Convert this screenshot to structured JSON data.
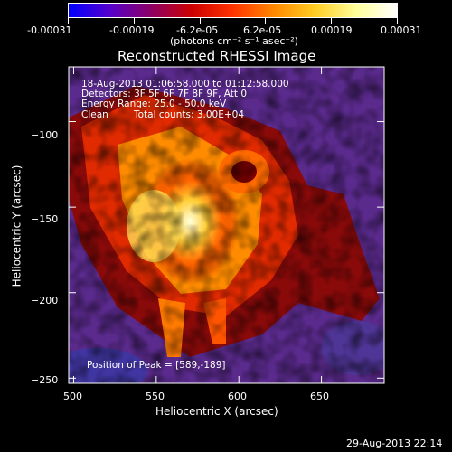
{
  "colorbar": {
    "tick_labels": [
      "-0.00031",
      "-0.00019",
      "-6.2e-05",
      "6.2e-05",
      "0.00019",
      "0.00031"
    ],
    "unit_line": "(photons cm⁻² s⁻¹ asec⁻²)",
    "stops": [
      "#0000ff",
      "#5500cc",
      "#8c0066",
      "#cc0000",
      "#ff3300",
      "#ff8800",
      "#ffcc22",
      "#ffff99",
      "#ffffff"
    ]
  },
  "annotations": {
    "time_range": "18-Aug-2013 01:06:58.000 to 01:12:58.000",
    "detectors": "Detectors: 3F 5F 6F 7F 8F 9F, Att 0",
    "energy": "Energy Range: 25.0 - 50.0 keV",
    "clean_label": "Clean",
    "total_counts": "Total counts: 3.00E+04",
    "peak": "Position of Peak = [589,-189]"
  },
  "footer": {
    "timestamp": "29-Aug-2013 22:14"
  },
  "chart_data": {
    "type": "heatmap",
    "title": "Reconstructed RHESSI Image",
    "xlabel": "Heliocentric X (arcsec)",
    "ylabel": "Heliocentric Y (arcsec)",
    "xlim": [
      497,
      688
    ],
    "ylim": [
      -253,
      -68
    ],
    "x_ticks": [
      500,
      550,
      600,
      650
    ],
    "y_ticks": [
      -100,
      -150,
      -200,
      -250
    ],
    "x_tick_labels": [
      "500",
      "550",
      "600",
      "650"
    ],
    "y_tick_labels": [
      "−100",
      "−150",
      "−200",
      "−250"
    ],
    "clim": [
      -0.00031,
      0.00031
    ],
    "peak_position": [
      589,
      -189
    ],
    "colors": {
      "background": "#000000",
      "axes": "#ffffff",
      "low_field": "#5a2a8c"
    }
  }
}
